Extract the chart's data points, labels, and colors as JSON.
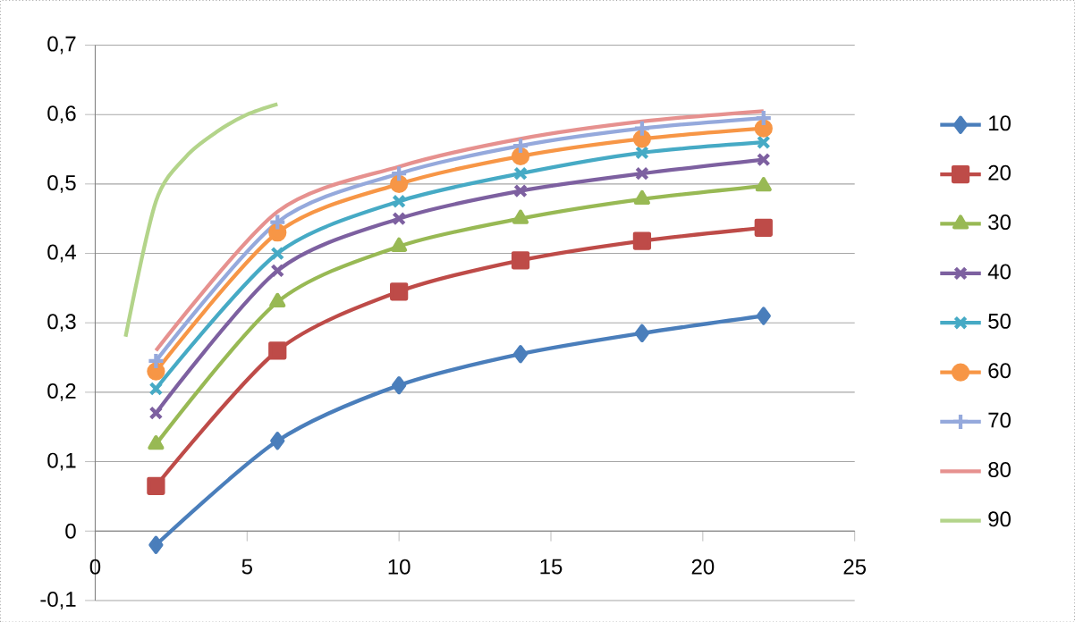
{
  "chart_data": {
    "type": "line",
    "x": [
      2,
      6,
      10,
      14,
      18,
      22
    ],
    "series": [
      {
        "name": "10",
        "color": "#4a7ebb",
        "marker": "diamond",
        "values": [
          -0.02,
          0.13,
          0.21,
          0.255,
          0.285,
          0.31
        ]
      },
      {
        "name": "20",
        "color": "#be4b48",
        "marker": "square",
        "values": [
          0.065,
          0.26,
          0.345,
          0.39,
          0.418,
          0.437
        ]
      },
      {
        "name": "30",
        "color": "#98b954",
        "marker": "triangle",
        "values": [
          0.125,
          0.33,
          0.41,
          0.45,
          0.478,
          0.497
        ]
      },
      {
        "name": "40",
        "color": "#7d60a0",
        "marker": "cross",
        "values": [
          0.17,
          0.375,
          0.45,
          0.49,
          0.515,
          0.535
        ]
      },
      {
        "name": "50",
        "color": "#46aac5",
        "marker": "cross",
        "values": [
          0.205,
          0.4,
          0.475,
          0.515,
          0.545,
          0.56
        ]
      },
      {
        "name": "60",
        "color": "#f79646",
        "marker": "circle",
        "values": [
          0.23,
          0.43,
          0.5,
          0.54,
          0.565,
          0.58
        ]
      },
      {
        "name": "70",
        "color": "#95a9dc",
        "marker": "plus",
        "values": [
          0.245,
          0.445,
          0.515,
          0.555,
          0.58,
          0.595
        ]
      },
      {
        "name": "80",
        "color": "#e6918f",
        "marker": "none",
        "values": [
          0.26,
          0.46,
          0.525,
          0.565,
          0.59,
          0.605
        ]
      },
      {
        "name": "90",
        "color": "#b3d48a",
        "marker": "none",
        "x": [
          1,
          2,
          3,
          4,
          5,
          6
        ],
        "values": [
          0.28,
          0.475,
          0.54,
          0.575,
          0.6,
          0.615
        ]
      }
    ],
    "xlim": [
      0,
      25
    ],
    "xticks": [
      0,
      5,
      10,
      15,
      20,
      25
    ],
    "ylim": [
      -0.1,
      0.7
    ],
    "yticks": [
      {
        "value": -0.1,
        "label": "-0,1"
      },
      0,
      {
        "value": 0.1,
        "label": "0,1"
      },
      {
        "value": 0.2,
        "label": "0,2"
      },
      {
        "value": 0.3,
        "label": "0,3"
      },
      {
        "value": 0.4,
        "label": "0,4"
      },
      {
        "value": 0.5,
        "label": "0,5"
      },
      {
        "value": 0.6,
        "label": "0,6"
      },
      {
        "value": 0.7,
        "label": "0,7"
      }
    ],
    "grid": "y",
    "legend": "right",
    "line_style": "solid"
  }
}
